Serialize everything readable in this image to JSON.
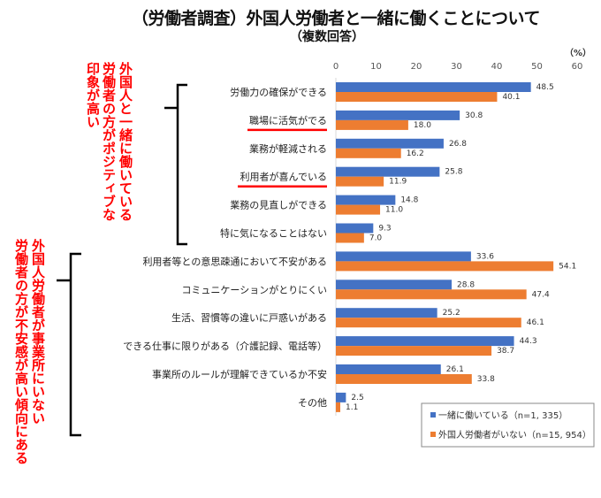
{
  "chart_data": {
    "type": "bar",
    "orientation": "horizontal",
    "title": "（労働者調査）外国人労働者と一緒に働くことについて",
    "subtitle": "（複数回答）",
    "unit_label": "（%）",
    "xlim": [
      0,
      60
    ],
    "x_ticks": [
      "0",
      "10",
      "20",
      "30",
      "40",
      "50",
      "60"
    ],
    "grid": false,
    "legend_position": "bottom-right",
    "categories": [
      "労働力の確保ができる",
      "職場に活気がでる",
      "業務が軽減される",
      "利用者が喜んでいる",
      "業務の見直しができる",
      "特に気になることはない",
      "利用者等との意思疎通において不安がある",
      "コミュニケーションがとりにくい",
      "生活、習慣等の違いに戸惑いがある",
      "できる仕事に限りがある（介護記録、電話等）",
      "事業所のルールが理解できているか不安",
      "その他"
    ],
    "underlined_categories": [
      1,
      3
    ],
    "series": [
      {
        "name": "一緒に働いている（n=1, 335）",
        "color": "#4472c4",
        "values": [
          48.5,
          30.8,
          26.8,
          25.8,
          14.8,
          9.3,
          33.6,
          28.8,
          25.2,
          44.3,
          26.1,
          2.5
        ],
        "labels": [
          "48.5",
          "30.8",
          "26.8",
          "25.8",
          "14.8",
          "9.3",
          "33.6",
          "28.8",
          "25.2",
          "44.3",
          "26.1",
          "2.5"
        ]
      },
      {
        "name": "外国人労働者がいない（n=15, 954）",
        "color": "#ed7d31",
        "values": [
          40.1,
          18.0,
          16.2,
          11.9,
          11.0,
          7.0,
          54.1,
          47.4,
          46.1,
          38.7,
          33.8,
          1.1
        ],
        "labels": [
          "40.1",
          "18.0",
          "16.2",
          "11.9",
          "11.0",
          "7.0",
          "54.1",
          "47.4",
          "46.1",
          "38.7",
          "33.8",
          "1.1"
        ]
      }
    ],
    "annotations": [
      {
        "lines": [
          "外国人と一緒に働いている",
          "労働者の方がポジティブな",
          "印象が高い"
        ],
        "color": "#ff0000",
        "applies_to": [
          0,
          5
        ]
      },
      {
        "lines": [
          "外国人労働者が事業所にいない",
          "労働者の方が不安感が高い傾向にある"
        ],
        "color": "#ff0000",
        "applies_to": [
          6,
          11
        ]
      }
    ]
  }
}
